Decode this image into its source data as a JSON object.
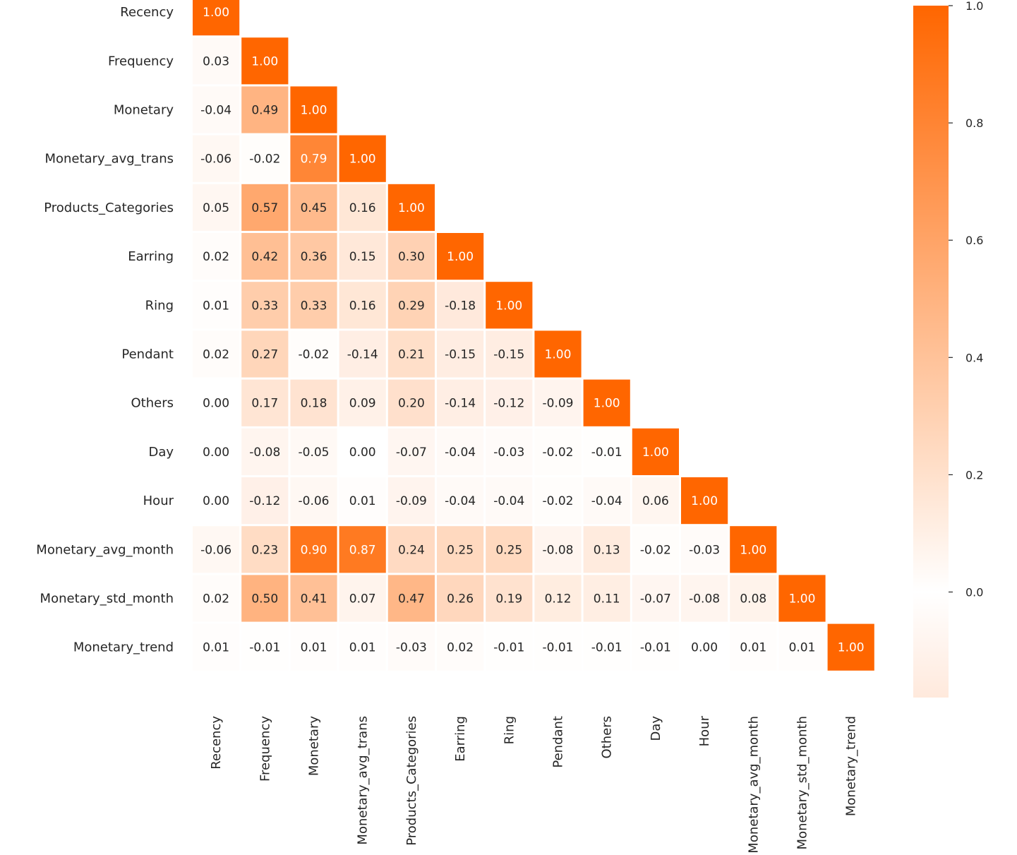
{
  "chart_data": {
    "type": "heatmap",
    "title": "",
    "mask": "upper-triangle",
    "variables": [
      "Recency",
      "Frequency",
      "Monetary",
      "Monetary_avg_trans",
      "Products_Categories",
      "Earring",
      "Ring",
      "Pendant",
      "Others",
      "Day",
      "Hour",
      "Monetary_avg_month",
      "Monetary_std_month",
      "Monetary_trend"
    ],
    "values": [
      [
        1.0
      ],
      [
        0.03,
        1.0
      ],
      [
        -0.04,
        0.49,
        1.0
      ],
      [
        -0.06,
        -0.02,
        0.79,
        1.0
      ],
      [
        0.05,
        0.57,
        0.45,
        0.16,
        1.0
      ],
      [
        0.02,
        0.42,
        0.36,
        0.15,
        0.3,
        1.0
      ],
      [
        0.01,
        0.33,
        0.33,
        0.16,
        0.29,
        -0.18,
        1.0
      ],
      [
        0.02,
        0.27,
        -0.02,
        -0.14,
        0.21,
        -0.15,
        -0.15,
        1.0
      ],
      [
        0.0,
        0.17,
        0.18,
        0.09,
        0.2,
        -0.14,
        -0.12,
        -0.09,
        1.0
      ],
      [
        -0.0,
        -0.08,
        -0.05,
        -0.0,
        -0.07,
        -0.04,
        -0.03,
        -0.02,
        -0.01,
        1.0
      ],
      [
        -0.0,
        -0.12,
        -0.06,
        0.01,
        -0.09,
        -0.04,
        -0.04,
        -0.02,
        -0.04,
        0.06,
        1.0
      ],
      [
        -0.06,
        0.23,
        0.9,
        0.87,
        0.24,
        0.25,
        0.25,
        -0.08,
        0.13,
        -0.02,
        -0.03,
        1.0
      ],
      [
        0.02,
        0.5,
        0.41,
        0.07,
        0.47,
        0.26,
        0.19,
        0.12,
        0.11,
        -0.07,
        -0.08,
        0.08,
        1.0
      ],
      [
        0.01,
        -0.01,
        0.01,
        0.01,
        -0.03,
        0.02,
        -0.01,
        -0.01,
        -0.01,
        -0.01,
        -0.0,
        0.01,
        0.01,
        1.0
      ]
    ],
    "colorbar": {
      "range": [
        -0.18,
        1.0
      ],
      "ticks": [
        0.0,
        0.2,
        0.4,
        0.6,
        0.8,
        1.0
      ],
      "tick_labels": [
        "0.0",
        "0.2",
        "0.4",
        "0.6",
        "0.8",
        "1.0"
      ],
      "color_low": "#ffe9dc",
      "color_mid": "#ffffff",
      "color_high": "#ff6600"
    },
    "xlabel": "",
    "ylabel": ""
  }
}
